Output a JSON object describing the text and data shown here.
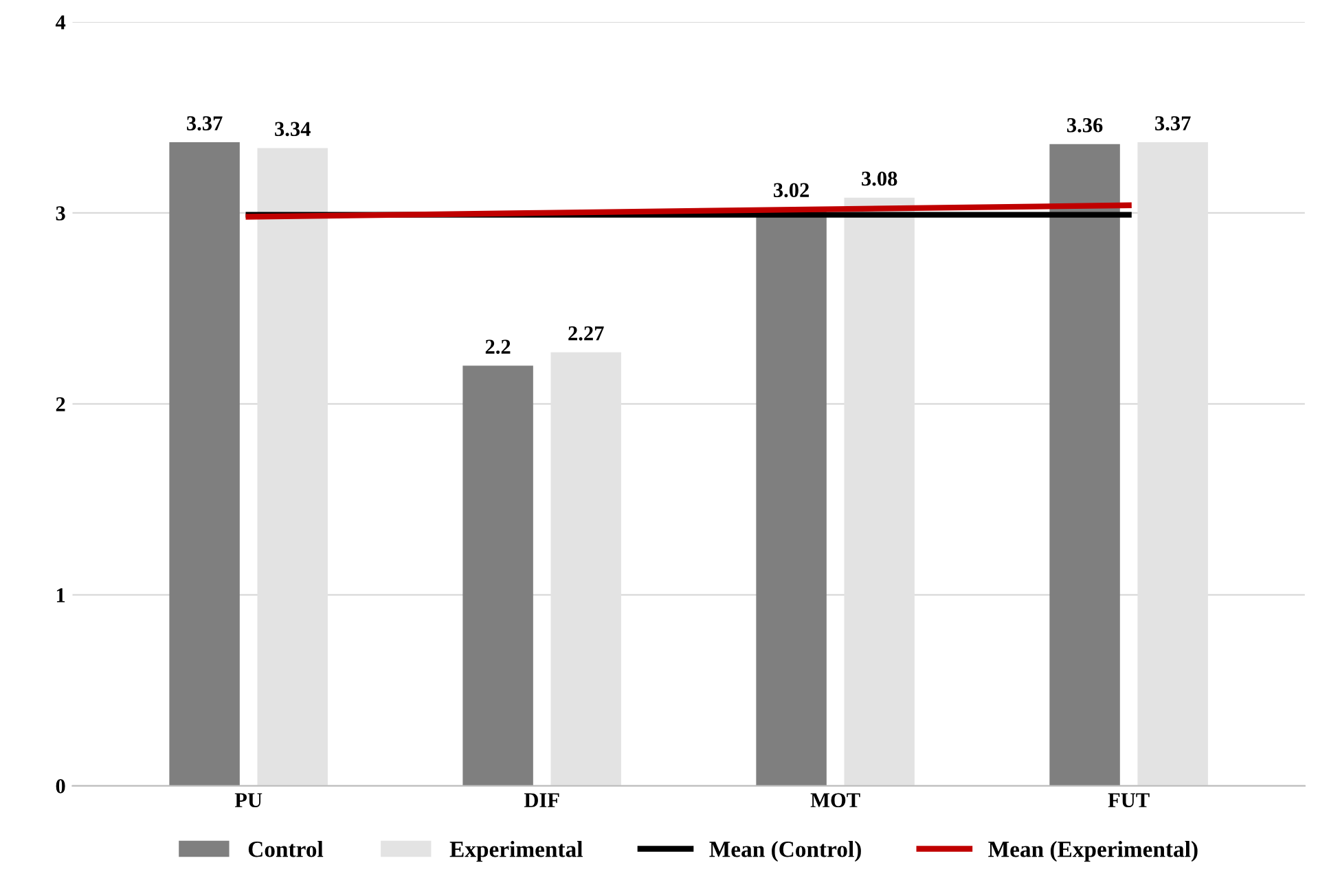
{
  "chart_data": {
    "type": "bar",
    "categories": [
      "PU",
      "DIF",
      "MOT",
      "FUT"
    ],
    "series": [
      {
        "name": "Control",
        "color": "#7f7f7f",
        "values": [
          3.37,
          2.2,
          3.02,
          3.36
        ],
        "value_labels": [
          "3.37",
          "2.2",
          "3.02",
          "3.36"
        ]
      },
      {
        "name": "Experimental",
        "color": "#e3e3e3",
        "values": [
          3.34,
          2.27,
          3.08,
          3.37
        ],
        "value_labels": [
          "3.34",
          "2.27",
          "3.08",
          "3.37"
        ]
      },
      {
        "name": "Mean (Control)",
        "type": "line",
        "color": "#000000",
        "values": [
          2.99,
          2.99,
          2.99,
          2.99
        ]
      },
      {
        "name": "Mean (Experimental)",
        "type": "line",
        "color": "#c00000",
        "values": [
          2.98,
          3.0,
          3.02,
          3.04
        ]
      }
    ],
    "ylim": [
      0,
      4
    ],
    "yticks": [
      0,
      1,
      2,
      3,
      4
    ],
    "grid": "y",
    "legend": "bottom",
    "line_style": "solid",
    "marker": "none"
  }
}
